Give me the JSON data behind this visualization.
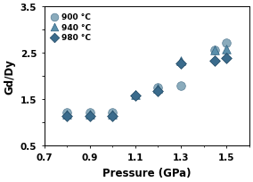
{
  "series": [
    {
      "label": "900 °C",
      "marker": "o",
      "color": "#8aabbc",
      "edgecolor": "#5a7f96",
      "size": 48,
      "x": [
        0.8,
        0.9,
        1.0,
        1.2,
        1.3,
        1.45,
        1.5
      ],
      "y": [
        1.22,
        1.22,
        1.22,
        1.75,
        1.78,
        2.56,
        2.72
      ]
    },
    {
      "label": "940 °C",
      "marker": "^",
      "color": "#5a8fab",
      "edgecolor": "#2e6080",
      "size": 48,
      "x": [
        0.8,
        0.9,
        1.0,
        1.1,
        1.2,
        1.3,
        1.45,
        1.5
      ],
      "y": [
        1.18,
        1.18,
        1.18,
        1.6,
        1.73,
        2.32,
        2.55,
        2.57
      ]
    },
    {
      "label": "980 °C",
      "marker": "D",
      "color": "#3a6b8c",
      "edgecolor": "#1e4560",
      "size": 36,
      "x": [
        0.8,
        0.9,
        1.0,
        1.1,
        1.2,
        1.3,
        1.45,
        1.5
      ],
      "y": [
        1.14,
        1.14,
        1.14,
        1.57,
        1.68,
        2.27,
        2.32,
        2.38
      ]
    }
  ],
  "xlabel": "Pressure (GPa)",
  "ylabel": "Gd/Dy",
  "xlim": [
    0.7,
    1.6
  ],
  "ylim": [
    0.5,
    3.5
  ],
  "xticks": [
    0.7,
    0.9,
    1.1,
    1.3,
    1.5
  ],
  "yticks": [
    0.5,
    1.0,
    1.5,
    2.0,
    2.5,
    3.0,
    3.5
  ],
  "ytick_labels": [
    "0.5",
    "",
    "1.5",
    "",
    "2.5",
    "",
    "3.5"
  ],
  "figsize": [
    2.84,
    2.05
  ],
  "dpi": 100,
  "legend_fontsize": 6.5,
  "axis_labelsize": 8.5,
  "tick_labelsize": 7.5,
  "bg_color": "#ffffff"
}
